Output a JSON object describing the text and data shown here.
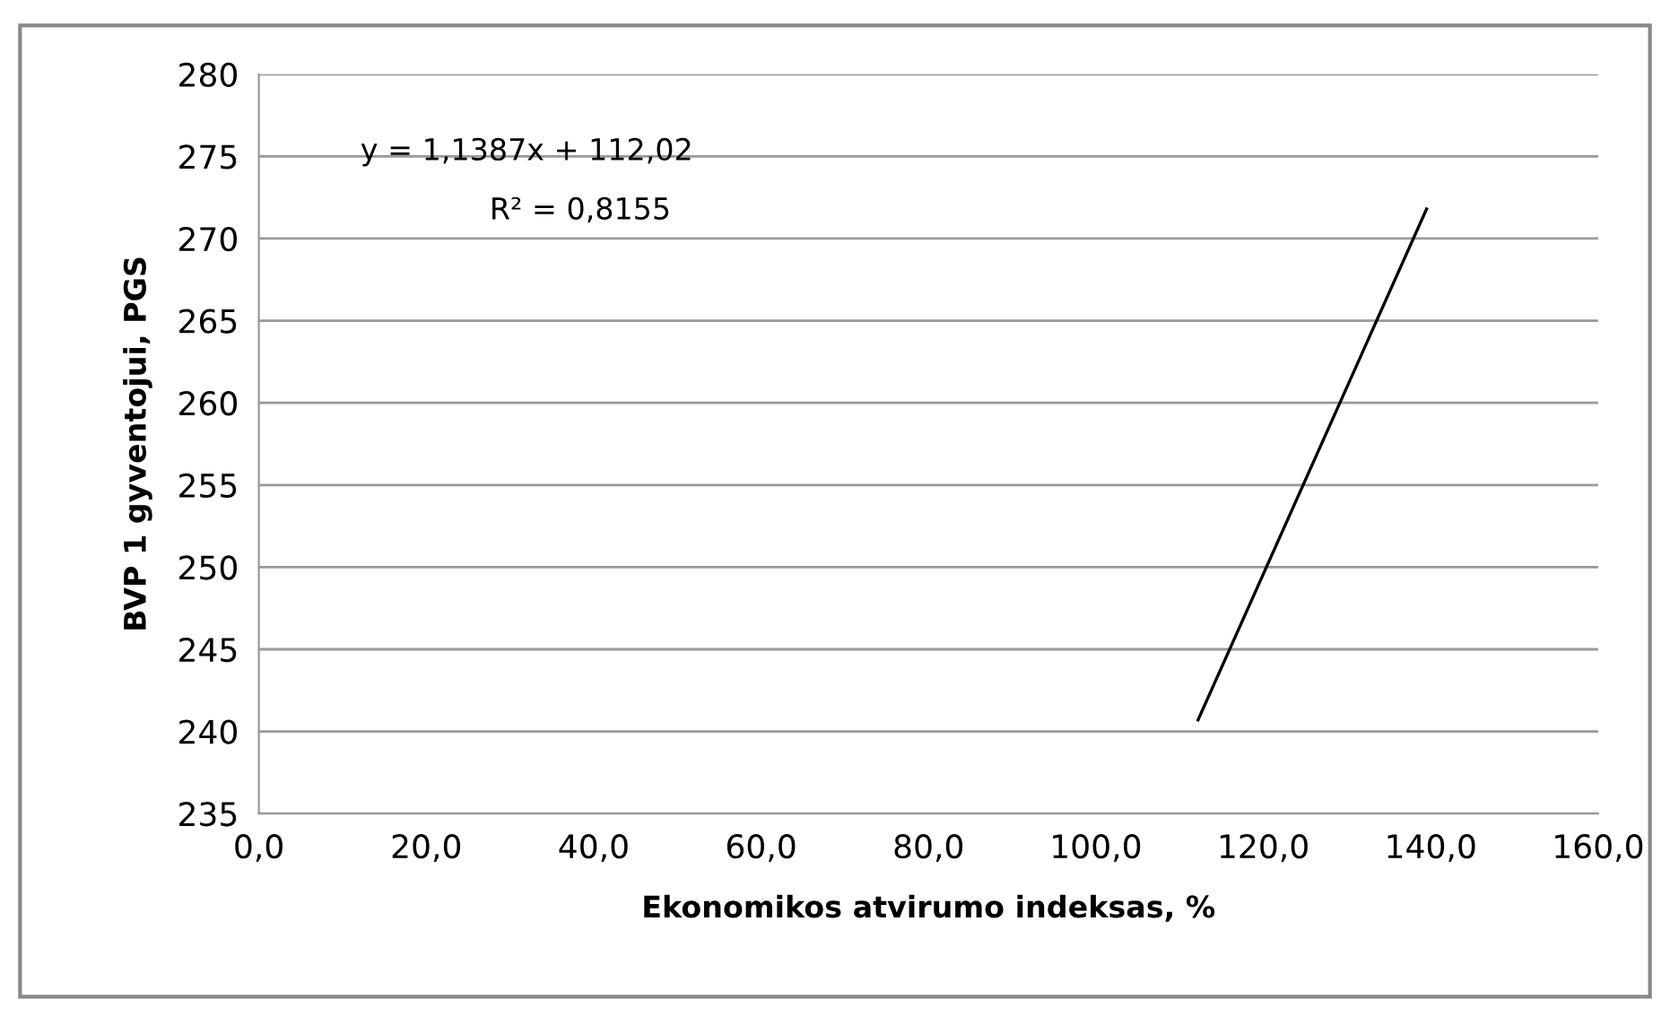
{
  "chart_data": {
    "type": "line",
    "xlabel": "Ekonomikos atvirumo indeksas, %",
    "ylabel": "BVP 1 gyventojui, PGS",
    "annotations": [
      "y = 1,1387x + 112,02",
      "R² = 0,8155"
    ],
    "series": [
      {
        "color": "#000000",
        "x": [
          112.2,
          139.5
        ],
        "values": [
          240.7,
          271.8
        ]
      }
    ],
    "xlim": [
      0,
      160
    ],
    "xticks": [
      {
        "value": 0,
        "label": "0,0"
      },
      {
        "value": 20,
        "label": "20,0"
      },
      {
        "value": 40,
        "label": "40,0"
      },
      {
        "value": 60,
        "label": "60,0"
      },
      {
        "value": 80,
        "label": "80,0"
      },
      {
        "value": 100,
        "label": "100,0"
      },
      {
        "value": 120,
        "label": "120,0"
      },
      {
        "value": 140,
        "label": "140,0"
      },
      {
        "value": 160,
        "label": "160,0"
      }
    ],
    "ylim": [
      235,
      280
    ],
    "yticks": [
      235,
      240,
      245,
      250,
      255,
      260,
      265,
      270,
      275,
      280
    ],
    "grid": "y",
    "legend": false,
    "marker": "none",
    "line_style": "solid"
  }
}
